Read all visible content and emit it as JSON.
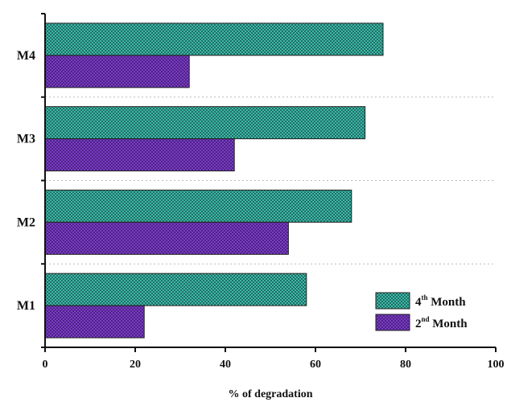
{
  "chart_data": {
    "type": "bar",
    "orientation": "horizontal",
    "categories": [
      "M1",
      "M2",
      "M3",
      "M4"
    ],
    "series": [
      {
        "name": "4th Month",
        "name_main": "4",
        "name_sup": "th",
        "name_rest": " Month",
        "values": [
          58,
          68,
          71,
          75
        ],
        "color": "#3fb7a6",
        "pattern": "checker-teal"
      },
      {
        "name": "2nd Month",
        "name_main": "2",
        "name_sup": "nd",
        "name_rest": " Month",
        "values": [
          22,
          54,
          42,
          32
        ],
        "color": "#6a33a8",
        "pattern": "checker-purple"
      }
    ],
    "xlabel": "% of degradation",
    "xlim": [
      0,
      100
    ],
    "xticks": [
      0,
      20,
      40,
      60,
      80,
      100
    ],
    "xtick_labels": [
      "0",
      "20",
      "40",
      "60",
      "80",
      "100"
    ],
    "grid": "horizontal dotted separators",
    "legend_position": "bottom-right"
  }
}
